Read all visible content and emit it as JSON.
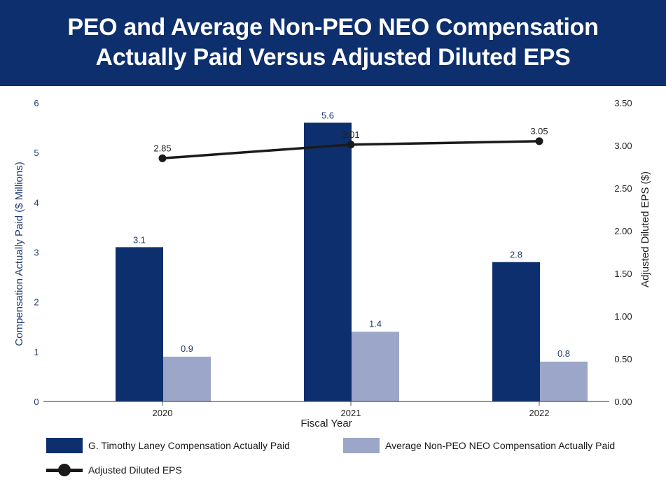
{
  "title_lines": [
    "PEO and Average Non-PEO NEO Compensation",
    "Actually Paid Versus Adjusted Diluted EPS"
  ],
  "colors": {
    "header": "#0d2f6e",
    "peo": "#0d2f6e",
    "neo": "#9ca6c8",
    "eps": "#1a1a1a",
    "axis_text": "#1f3b73"
  },
  "chart_data": {
    "type": "bar",
    "title": "PEO and Average Non-PEO NEO Compensation Actually Paid Versus Adjusted Diluted EPS",
    "xlabel": "Fiscal Year",
    "ylabel": "Compensation Actually Paid ($ Millions)",
    "y2label": "Adjusted Diluted EPS ($)",
    "categories": [
      "2020",
      "2021",
      "2022"
    ],
    "ylim": [
      0,
      6
    ],
    "yticks": [
      "0",
      "1",
      "2",
      "3",
      "4",
      "5",
      "6"
    ],
    "y2lim": [
      0,
      3.5
    ],
    "y2ticks": [
      "0.00",
      "0.50",
      "1.00",
      "1.50",
      "2.00",
      "2.50",
      "3.00",
      "3.50"
    ],
    "grid": false,
    "series": [
      {
        "name": "G. Timothy Laney Compensation Actually Paid",
        "type": "bar",
        "axis": "left",
        "values": [
          3.1,
          5.6,
          2.8
        ],
        "labels": [
          "3.1",
          "5.6",
          "2.8"
        ]
      },
      {
        "name": "Average Non-PEO NEO Compensation Actually Paid",
        "type": "bar",
        "axis": "left",
        "values": [
          0.9,
          1.4,
          0.8
        ],
        "labels": [
          "0.9",
          "1.4",
          "0.8"
        ]
      },
      {
        "name": "Adjusted Diluted EPS",
        "type": "line",
        "axis": "right",
        "values": [
          2.85,
          3.01,
          3.05
        ],
        "labels": [
          "2.85",
          "3.01",
          "3.05"
        ]
      }
    ],
    "legend_position": "bottom"
  }
}
